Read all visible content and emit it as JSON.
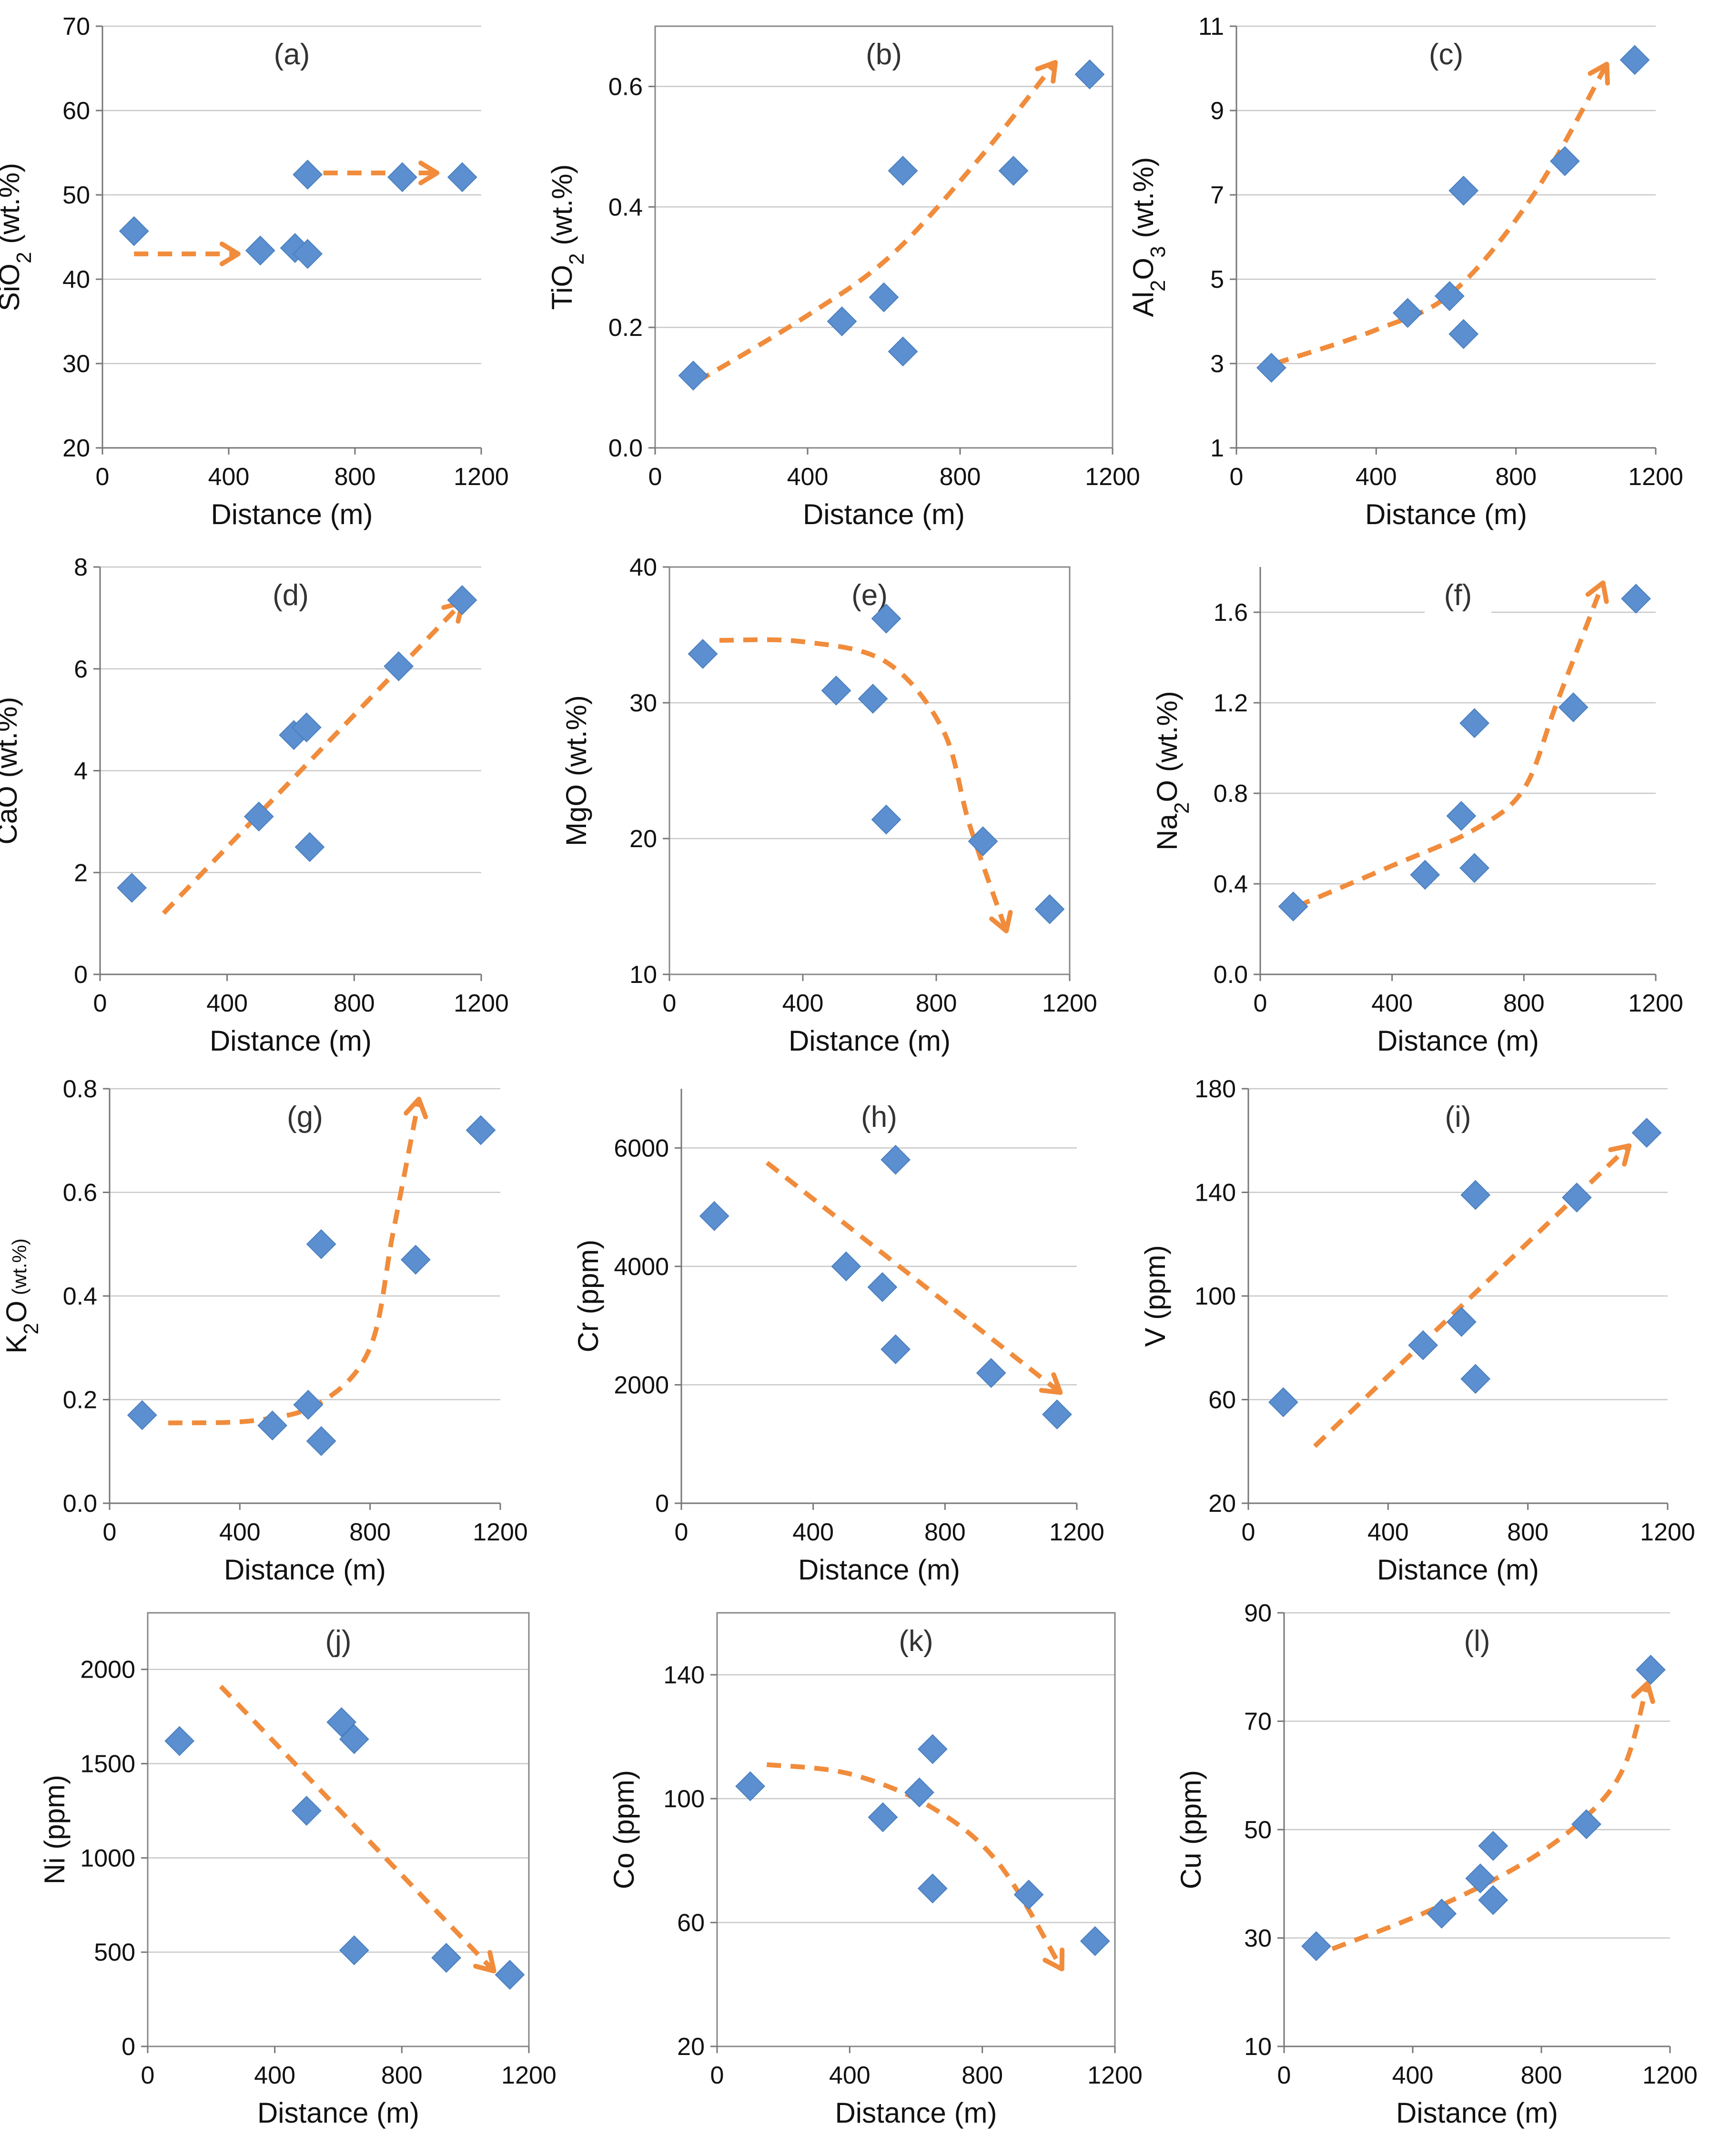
{
  "figure": {
    "colors": {
      "marker": "#5b8fd0",
      "trend": "#f08c3c",
      "grid": "#c8c8c8",
      "axis": "#777777"
    }
  },
  "chart_data": [
    {
      "type": "scatter",
      "panel_label": "(a)",
      "xlabel": "Distance (m)",
      "ylabel": {
        "main": "SiO",
        "sub": "2",
        "rest": " (wt.%)"
      },
      "xlim": [
        0,
        1200
      ],
      "xticks": [
        0,
        400,
        800,
        1200
      ],
      "ylim": [
        20,
        70
      ],
      "yticks": [
        20,
        30,
        40,
        50,
        60,
        70
      ],
      "tick_labels_y": [
        "20",
        "30",
        "40",
        "50",
        "60",
        "70"
      ],
      "tick_labels_x": [
        "0",
        "400",
        "800",
        "1200"
      ],
      "framed": false,
      "points": [
        [
          100,
          45.7
        ],
        [
          500,
          43.4
        ],
        [
          610,
          43.7
        ],
        [
          650,
          43.0
        ],
        [
          650,
          52.4
        ],
        [
          950,
          52.1
        ],
        [
          1140,
          52.1
        ]
      ],
      "trends": [
        {
          "points": [
            [
              100,
              43
            ],
            [
              430,
              43
            ]
          ],
          "arrow": true
        },
        {
          "points": [
            [
              700,
              52.6
            ],
            [
              1060,
              52.6
            ]
          ],
          "arrow": true
        }
      ]
    },
    {
      "type": "scatter",
      "panel_label": "(b)",
      "xlabel": "Distance (m)",
      "ylabel": {
        "main": "TiO",
        "sub": "2",
        "rest": " (wt.%)"
      },
      "xlim": [
        0,
        1200
      ],
      "xticks": [
        0,
        400,
        800,
        1200
      ],
      "ylim": [
        0,
        0.7
      ],
      "yticks": [
        0,
        0.2,
        0.4,
        0.6
      ],
      "tick_labels_y": [
        "0.0",
        "0.2",
        "0.4",
        "0.6"
      ],
      "tick_labels_x": [
        "0",
        "400",
        "800",
        "1200"
      ],
      "framed": true,
      "points": [
        [
          100,
          0.12
        ],
        [
          490,
          0.21
        ],
        [
          600,
          0.25
        ],
        [
          650,
          0.16
        ],
        [
          650,
          0.46
        ],
        [
          940,
          0.46
        ],
        [
          1140,
          0.62
        ]
      ],
      "trends": [
        {
          "points": [
            [
              110,
              0.11
            ],
            [
              400,
              0.22
            ],
            [
              620,
              0.32
            ],
            [
              850,
              0.48
            ],
            [
              1050,
              0.64
            ]
          ],
          "arrow": true
        }
      ]
    },
    {
      "type": "scatter",
      "panel_label": "(c)",
      "xlabel": "Distance (m)",
      "ylabel": {
        "main": "Al",
        "sub": "2",
        "rest": "O",
        "sub2": "3",
        "rest2": " (wt.%)"
      },
      "xlim": [
        0,
        1200
      ],
      "xticks": [
        0,
        400,
        800,
        1200
      ],
      "ylim": [
        1,
        11
      ],
      "yticks": [
        1,
        3,
        5,
        7,
        9,
        11
      ],
      "tick_labels_y": [
        "1",
        "3",
        "5",
        "7",
        "9",
        "11"
      ],
      "tick_labels_x": [
        "0",
        "400",
        "800",
        "1200"
      ],
      "framed": false,
      "points": [
        [
          100,
          2.9
        ],
        [
          490,
          4.2
        ],
        [
          610,
          4.6
        ],
        [
          650,
          3.7
        ],
        [
          650,
          7.1
        ],
        [
          940,
          7.8
        ],
        [
          1140,
          10.2
        ]
      ],
      "trends": [
        {
          "points": [
            [
              110,
              3.0
            ],
            [
              400,
              3.8
            ],
            [
              620,
              4.7
            ],
            [
              850,
              7.0
            ],
            [
              1060,
              10.1
            ]
          ],
          "arrow": true
        }
      ]
    },
    {
      "type": "scatter",
      "panel_label": "(d)",
      "xlabel": "Distance (m)",
      "ylabel": {
        "main": "CaO",
        "sub": "",
        "rest": " (wt.%)"
      },
      "xlim": [
        0,
        1200
      ],
      "xticks": [
        0,
        400,
        800,
        1200
      ],
      "ylim": [
        0,
        8
      ],
      "yticks": [
        0,
        2,
        4,
        6,
        8
      ],
      "tick_labels_y": [
        "0",
        "2",
        "4",
        "6",
        "8"
      ],
      "tick_labels_x": [
        "0",
        "400",
        "800",
        "1200"
      ],
      "framed": false,
      "points": [
        [
          100,
          1.7
        ],
        [
          500,
          3.1
        ],
        [
          610,
          4.7
        ],
        [
          650,
          4.85
        ],
        [
          660,
          2.5
        ],
        [
          940,
          6.05
        ],
        [
          1140,
          7.35
        ]
      ],
      "trends": [
        {
          "points": [
            [
              200,
              1.2
            ],
            [
              1140,
              7.3
            ]
          ],
          "arrow": true
        }
      ]
    },
    {
      "type": "scatter",
      "panel_label": "(e)",
      "xlabel": "Distance (m)",
      "ylabel": {
        "main": "MgO",
        "sub": "",
        "rest": " (wt.%)"
      },
      "xlim": [
        0,
        1200
      ],
      "xticks": [
        0,
        400,
        800,
        1200
      ],
      "ylim": [
        10,
        40
      ],
      "yticks": [
        10,
        20,
        30,
        40
      ],
      "tick_labels_y": [
        "10",
        "20",
        "30",
        "40"
      ],
      "tick_labels_x": [
        "0",
        "400",
        "800",
        "1200"
      ],
      "framed": true,
      "points": [
        [
          100,
          33.6
        ],
        [
          500,
          30.9
        ],
        [
          610,
          30.3
        ],
        [
          650,
          36.2
        ],
        [
          650,
          21.4
        ],
        [
          940,
          19.8
        ],
        [
          1140,
          14.8
        ]
      ],
      "trends": [
        {
          "points": [
            [
              150,
              34.6
            ],
            [
              400,
              34.5
            ],
            [
              650,
              33.0
            ],
            [
              820,
              28.0
            ],
            [
              900,
              21.0
            ],
            [
              1010,
              13.2
            ]
          ],
          "arrow": true
        }
      ]
    },
    {
      "type": "scatter",
      "panel_label": "(f)",
      "xlabel": "Distance (m)",
      "ylabel": {
        "main": "Na",
        "sub": "2",
        "rest": "O (wt.%)"
      },
      "xlim": [
        0,
        1200
      ],
      "xticks": [
        0,
        400,
        800,
        1200
      ],
      "ylim": [
        0,
        1.8
      ],
      "yticks": [
        0,
        0.4,
        0.8,
        1.2,
        1.6
      ],
      "tick_labels_y": [
        "0.0",
        "0.4",
        "0.8",
        "1.2",
        "1.6"
      ],
      "tick_labels_x": [
        "0",
        "400",
        "800",
        "1200"
      ],
      "framed": false,
      "points": [
        [
          100,
          0.3
        ],
        [
          500,
          0.44
        ],
        [
          610,
          0.7
        ],
        [
          650,
          0.47
        ],
        [
          650,
          1.11
        ],
        [
          950,
          1.18
        ],
        [
          1140,
          1.66
        ]
      ],
      "trends": [
        {
          "points": [
            [
              110,
              0.3
            ],
            [
              400,
              0.48
            ],
            [
              650,
              0.64
            ],
            [
              800,
              0.82
            ],
            [
              900,
              1.2
            ],
            [
              1040,
              1.73
            ]
          ],
          "arrow": true
        }
      ]
    },
    {
      "type": "scatter",
      "panel_label": "(g)",
      "xlabel": "Distance (m)",
      "ylabel": {
        "main": "K",
        "sub": "2",
        "rest": "O",
        "small": " (wt.%)"
      },
      "xlim": [
        0,
        1200
      ],
      "xticks": [
        0,
        400,
        800,
        1200
      ],
      "ylim": [
        0,
        0.8
      ],
      "yticks": [
        0,
        0.2,
        0.4,
        0.6,
        0.8
      ],
      "tick_labels_y": [
        "0.0",
        "0.2",
        "0.4",
        "0.6",
        "0.8"
      ],
      "tick_labels_x": [
        "0",
        "400",
        "800",
        "1200"
      ],
      "framed": false,
      "points": [
        [
          100,
          0.17
        ],
        [
          500,
          0.15
        ],
        [
          610,
          0.19
        ],
        [
          650,
          0.12
        ],
        [
          650,
          0.5
        ],
        [
          940,
          0.47
        ],
        [
          1140,
          0.72
        ]
      ],
      "trends": [
        {
          "points": [
            [
              180,
              0.155
            ],
            [
              450,
              0.16
            ],
            [
              650,
              0.195
            ],
            [
              800,
              0.3
            ],
            [
              870,
              0.52
            ],
            [
              950,
              0.78
            ]
          ],
          "arrow": true
        }
      ]
    },
    {
      "type": "scatter",
      "panel_label": "(h)",
      "xlabel": "Distance (m)",
      "ylabel": {
        "main": "Cr (ppm)",
        "sub": "",
        "rest": ""
      },
      "xlim": [
        0,
        1200
      ],
      "xticks": [
        0,
        400,
        800,
        1200
      ],
      "ylim": [
        0,
        7000
      ],
      "yticks": [
        0,
        2000,
        4000,
        6000
      ],
      "tick_labels_y": [
        "0",
        "2000",
        "4000",
        "6000"
      ],
      "tick_labels_x": [
        "0",
        "400",
        "800",
        "1200"
      ],
      "framed": false,
      "points": [
        [
          100,
          4850
        ],
        [
          500,
          4000
        ],
        [
          610,
          3650
        ],
        [
          650,
          5800
        ],
        [
          650,
          2600
        ],
        [
          940,
          2200
        ],
        [
          1140,
          1500
        ]
      ],
      "trends": [
        {
          "points": [
            [
              260,
              5750
            ],
            [
              1150,
              1870
            ]
          ],
          "arrow": true
        }
      ]
    },
    {
      "type": "scatter",
      "panel_label": "(i)",
      "xlabel": "Distance (m)",
      "ylabel": {
        "main": "V (ppm)",
        "sub": "",
        "rest": ""
      },
      "xlim": [
        0,
        1200
      ],
      "xticks": [
        0,
        400,
        800,
        1200
      ],
      "ylim": [
        20,
        180
      ],
      "yticks": [
        20,
        60,
        100,
        140,
        180
      ],
      "tick_labels_y": [
        "20",
        "60",
        "100",
        "140",
        "180"
      ],
      "tick_labels_x": [
        "0",
        "400",
        "800",
        "1200"
      ],
      "framed": false,
      "points": [
        [
          100,
          59
        ],
        [
          500,
          81
        ],
        [
          610,
          90
        ],
        [
          650,
          139
        ],
        [
          650,
          68
        ],
        [
          940,
          138
        ],
        [
          1140,
          163
        ]
      ],
      "trends": [
        {
          "points": [
            [
              190,
              42
            ],
            [
              1090,
              158
            ]
          ],
          "arrow": true
        }
      ]
    },
    {
      "type": "scatter",
      "panel_label": "(j)",
      "xlabel": "Distance (m)",
      "ylabel": {
        "main": "Ni (ppm)",
        "sub": "",
        "rest": ""
      },
      "xlim": [
        0,
        1200
      ],
      "xticks": [
        0,
        400,
        800,
        1200
      ],
      "ylim": [
        0,
        2300
      ],
      "yticks": [
        0,
        500,
        1000,
        1500,
        2000
      ],
      "tick_labels_y": [
        "0",
        "500",
        "1000",
        "1500",
        "2000"
      ],
      "tick_labels_x": [
        "0",
        "400",
        "800",
        "1200"
      ],
      "framed": true,
      "points": [
        [
          100,
          1620
        ],
        [
          500,
          1250
        ],
        [
          610,
          1720
        ],
        [
          650,
          1630
        ],
        [
          650,
          510
        ],
        [
          940,
          470
        ],
        [
          1140,
          380
        ]
      ],
      "trends": [
        {
          "points": [
            [
              230,
              1910
            ],
            [
              1090,
              400
            ]
          ],
          "arrow": true
        }
      ]
    },
    {
      "type": "scatter",
      "panel_label": "(k)",
      "xlabel": "Distance (m)",
      "ylabel": {
        "main": "Co (ppm)",
        "sub": "",
        "rest": ""
      },
      "xlim": [
        0,
        1200
      ],
      "xticks": [
        0,
        400,
        800,
        1200
      ],
      "ylim": [
        20,
        160
      ],
      "yticks": [
        20,
        60,
        100,
        140
      ],
      "tick_labels_y": [
        "20",
        "60",
        "100",
        "140"
      ],
      "tick_labels_x": [
        "0",
        "400",
        "800",
        "1200"
      ],
      "framed": true,
      "points": [
        [
          100,
          104
        ],
        [
          500,
          94
        ],
        [
          610,
          102
        ],
        [
          650,
          116
        ],
        [
          650,
          71
        ],
        [
          940,
          69
        ],
        [
          1140,
          54
        ]
      ],
      "trends": [
        {
          "points": [
            [
              150,
              111
            ],
            [
              400,
              108
            ],
            [
              650,
              97
            ],
            [
              850,
              79
            ],
            [
              1040,
              45
            ]
          ],
          "arrow": true
        }
      ]
    },
    {
      "type": "scatter",
      "panel_label": "(l)",
      "xlabel": "Distance (m)",
      "ylabel": {
        "main": "Cu (ppm)",
        "sub": "",
        "rest": ""
      },
      "xlim": [
        0,
        1200
      ],
      "xticks": [
        0,
        400,
        800,
        1200
      ],
      "ylim": [
        10,
        90
      ],
      "yticks": [
        10,
        30,
        50,
        70,
        90
      ],
      "tick_labels_y": [
        "10",
        "30",
        "50",
        "70",
        "90"
      ],
      "tick_labels_x": [
        "0",
        "400",
        "800",
        "1200"
      ],
      "framed": false,
      "points": [
        [
          100,
          28.5
        ],
        [
          490,
          34.5
        ],
        [
          610,
          41
        ],
        [
          650,
          47
        ],
        [
          650,
          37
        ],
        [
          940,
          51
        ],
        [
          1140,
          79.5
        ]
      ],
      "trends": [
        {
          "points": [
            [
              150,
              28
            ],
            [
              450,
              35
            ],
            [
              750,
              44
            ],
            [
              950,
              53
            ],
            [
              1060,
              62
            ],
            [
              1130,
              77
            ]
          ],
          "arrow": true
        }
      ]
    }
  ]
}
